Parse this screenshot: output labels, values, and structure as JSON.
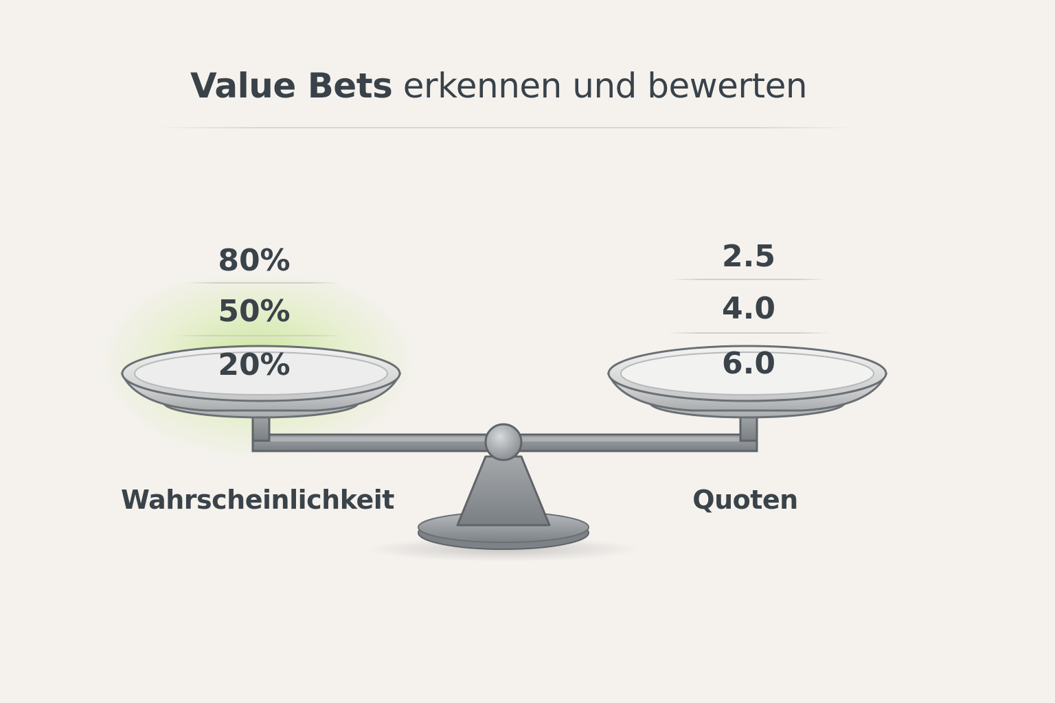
{
  "title": {
    "strong": "Value Bets",
    "rest": " erkennen und bewerten"
  },
  "left": {
    "label": "Wahrscheinlichkeit",
    "values": [
      "80%",
      "50%",
      "20%"
    ],
    "highlight_color": "#a8dc5a"
  },
  "right": {
    "label": "Quoten",
    "values": [
      "2.5",
      "4.0",
      "6.0"
    ]
  },
  "colors": {
    "background": "#f5f2ee",
    "text": "#3b434a",
    "scale_metal": "#8a8e92"
  }
}
